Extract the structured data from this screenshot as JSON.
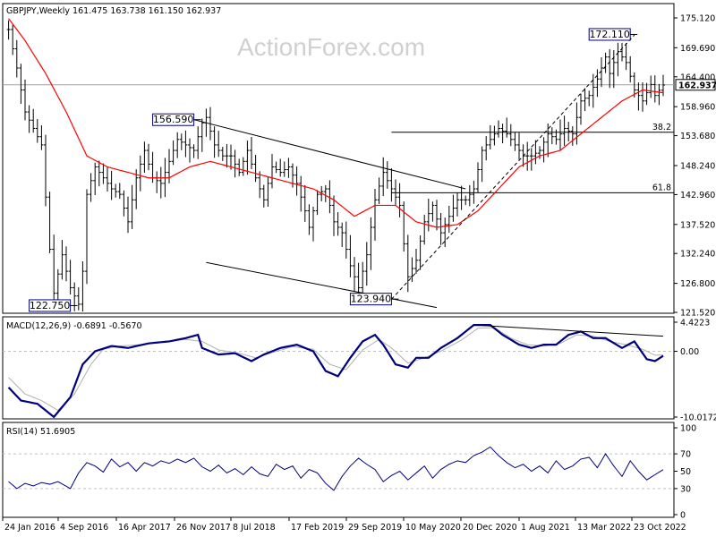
{
  "watermark": "ActionForex.com",
  "chart_data": {
    "type": "line",
    "title": "GBPJPY,Weekly  161.475 163.738 161.150 162.937",
    "price_panel": {
      "ylim": [
        121.52,
        175.12
      ],
      "y_ticks": [
        "175.120",
        "169.690",
        "164.400",
        "158.960",
        "153.680",
        "148.240",
        "142.960",
        "137.520",
        "132.240",
        "126.800",
        "121.520"
      ],
      "current_price": "162.937",
      "price_waypoints": [
        [
          1,
          173
        ],
        [
          3,
          166
        ],
        [
          5,
          158
        ],
        [
          7,
          155
        ],
        [
          9,
          152
        ],
        [
          11,
          133
        ],
        [
          12,
          125
        ],
        [
          14,
          132
        ],
        [
          16,
          126
        ],
        [
          18,
          123
        ],
        [
          19,
          129
        ],
        [
          20,
          143
        ],
        [
          22,
          148
        ],
        [
          24,
          146
        ],
        [
          26,
          144
        ],
        [
          28,
          143
        ],
        [
          30,
          138
        ],
        [
          32,
          146
        ],
        [
          34,
          151
        ],
        [
          36,
          146
        ],
        [
          38,
          145
        ],
        [
          40,
          149
        ],
        [
          42,
          153
        ],
        [
          44,
          152
        ],
        [
          46,
          151
        ],
        [
          48,
          156
        ],
        [
          49,
          157
        ],
        [
          51,
          152
        ],
        [
          53,
          150
        ],
        [
          55,
          150
        ],
        [
          57,
          147
        ],
        [
          59,
          151
        ],
        [
          61,
          146
        ],
        [
          63,
          142
        ],
        [
          65,
          148
        ],
        [
          67,
          147
        ],
        [
          69,
          148
        ],
        [
          71,
          145
        ],
        [
          73,
          140
        ],
        [
          74,
          137
        ],
        [
          76,
          143
        ],
        [
          78,
          144
        ],
        [
          80,
          138
        ],
        [
          82,
          136
        ],
        [
          84,
          130
        ],
        [
          86,
          126
        ],
        [
          88,
          132
        ],
        [
          90,
          142
        ],
        [
          92,
          147
        ],
        [
          94,
          144
        ],
        [
          96,
          141
        ],
        [
          97,
          134
        ],
        [
          98,
          128
        ],
        [
          100,
          131
        ],
        [
          102,
          138
        ],
        [
          104,
          141
        ],
        [
          106,
          136
        ],
        [
          108,
          139
        ],
        [
          110,
          142
        ],
        [
          112,
          142
        ],
        [
          114,
          144
        ],
        [
          116,
          151
        ],
        [
          118,
          153
        ],
        [
          120,
          155
        ],
        [
          122,
          154
        ],
        [
          124,
          152
        ],
        [
          126,
          150
        ],
        [
          128,
          150
        ],
        [
          130,
          151
        ],
        [
          132,
          154
        ],
        [
          134,
          153
        ],
        [
          136,
          155
        ],
        [
          138,
          154
        ],
        [
          140,
          160
        ],
        [
          142,
          161
        ],
        [
          144,
          164
        ],
        [
          146,
          168
        ],
        [
          147,
          165
        ],
        [
          149,
          169
        ],
        [
          151,
          167
        ],
        [
          153,
          162
        ],
        [
          155,
          160
        ],
        [
          157,
          163
        ],
        [
          158,
          161
        ],
        [
          160,
          162.9
        ]
      ],
      "ma_waypoints": [
        [
          1,
          175
        ],
        [
          5,
          171
        ],
        [
          10,
          165
        ],
        [
          15,
          158
        ],
        [
          20,
          150
        ],
        [
          25,
          148
        ],
        [
          30,
          147
        ],
        [
          35,
          146
        ],
        [
          40,
          146
        ],
        [
          45,
          148
        ],
        [
          50,
          149
        ],
        [
          55,
          148
        ],
        [
          60,
          147
        ],
        [
          65,
          146
        ],
        [
          70,
          145
        ],
        [
          75,
          144
        ],
        [
          80,
          142
        ],
        [
          85,
          139
        ],
        [
          90,
          141
        ],
        [
          95,
          141
        ],
        [
          100,
          138
        ],
        [
          105,
          137
        ],
        [
          110,
          137.5
        ],
        [
          115,
          140
        ],
        [
          120,
          144
        ],
        [
          125,
          148
        ],
        [
          130,
          150
        ],
        [
          135,
          151
        ],
        [
          140,
          154
        ],
        [
          145,
          157
        ],
        [
          150,
          160
        ],
        [
          155,
          162
        ],
        [
          160,
          161.5
        ]
      ],
      "annotations": [
        {
          "label": "156.590",
          "x": 46,
          "price": 156.59,
          "anchor": "before"
        },
        {
          "label": "122.750",
          "x": 16,
          "price": 122.75,
          "anchor": "before"
        },
        {
          "label": "123.940",
          "x": 94,
          "price": 123.94,
          "anchor": "before"
        },
        {
          "label": "172.110",
          "x": 152,
          "price": 172.11,
          "anchor": "before"
        }
      ],
      "fib_levels": [
        {
          "label": "38.2",
          "price": 154.3,
          "x_from": 94
        },
        {
          "label": "61.8",
          "price": 143.3,
          "x_from": 94
        }
      ],
      "trendlines": [
        {
          "style": "solid",
          "from": [
            46,
            156.6
          ],
          "to": [
            112,
            144.0
          ]
        },
        {
          "style": "solid",
          "from": [
            49,
            130.6
          ],
          "to": [
            105,
            122.4
          ]
        },
        {
          "style": "dashed",
          "from": [
            94,
            123.9
          ],
          "to": [
            153,
            172.0
          ]
        }
      ]
    },
    "macd_panel": {
      "title": "MACD(12,26,9) -0.6891 -0.5670",
      "ylim": [
        -10.0172,
        4.4223
      ],
      "y_ticks": [
        "4.4223",
        "0.00",
        "-10.0172"
      ],
      "macd_waypoints": [
        [
          1,
          -5.5
        ],
        [
          4,
          -7.5
        ],
        [
          8,
          -8
        ],
        [
          12,
          -10
        ],
        [
          16,
          -7
        ],
        [
          19,
          -2
        ],
        [
          22,
          0
        ],
        [
          26,
          0.8
        ],
        [
          30,
          0.5
        ],
        [
          35,
          1.2
        ],
        [
          40,
          1.5
        ],
        [
          44,
          2
        ],
        [
          47,
          2.5
        ],
        [
          48,
          0.5
        ],
        [
          52,
          -0.5
        ],
        [
          56,
          -0.3
        ],
        [
          60,
          -1.5
        ],
        [
          63,
          -0.5
        ],
        [
          67,
          0.5
        ],
        [
          71,
          1
        ],
        [
          75,
          0
        ],
        [
          78,
          -3
        ],
        [
          81,
          -3.8
        ],
        [
          84,
          -1
        ],
        [
          87,
          1.5
        ],
        [
          90,
          2.5
        ],
        [
          92,
          1
        ],
        [
          95,
          -2
        ],
        [
          98,
          -2.5
        ],
        [
          100,
          -1
        ],
        [
          103,
          -1
        ],
        [
          106,
          0.5
        ],
        [
          110,
          2
        ],
        [
          114,
          4
        ],
        [
          118,
          4
        ],
        [
          121,
          2.5
        ],
        [
          125,
          1
        ],
        [
          128,
          0.5
        ],
        [
          131,
          1
        ],
        [
          134,
          1
        ],
        [
          137,
          2.5
        ],
        [
          140,
          3
        ],
        [
          143,
          2
        ],
        [
          146,
          2
        ],
        [
          150,
          0.5
        ],
        [
          153,
          1.5
        ],
        [
          156,
          -1.2
        ],
        [
          158,
          -1.5
        ],
        [
          160,
          -0.7
        ]
      ],
      "signal_waypoints": [
        [
          1,
          -4
        ],
        [
          5,
          -6.5
        ],
        [
          9,
          -7.5
        ],
        [
          13,
          -9
        ],
        [
          17,
          -6.5
        ],
        [
          21,
          -2
        ],
        [
          24,
          0.3
        ],
        [
          28,
          0.8
        ],
        [
          33,
          1
        ],
        [
          38,
          1.4
        ],
        [
          44,
          1.8
        ],
        [
          48,
          1.5
        ],
        [
          52,
          0.2
        ],
        [
          57,
          -0.3
        ],
        [
          61,
          -1
        ],
        [
          65,
          -0.2
        ],
        [
          70,
          0.7
        ],
        [
          75,
          0.3
        ],
        [
          79,
          -2
        ],
        [
          83,
          -2.8
        ],
        [
          87,
          0.2
        ],
        [
          91,
          1.8
        ],
        [
          94,
          0.5
        ],
        [
          98,
          -1.8
        ],
        [
          102,
          -1
        ],
        [
          106,
          0
        ],
        [
          111,
          1.7
        ],
        [
          115,
          3.5
        ],
        [
          119,
          3.6
        ],
        [
          123,
          2
        ],
        [
          127,
          1
        ],
        [
          131,
          0.8
        ],
        [
          135,
          1.2
        ],
        [
          139,
          2.5
        ],
        [
          143,
          2.3
        ],
        [
          147,
          1.5
        ],
        [
          151,
          1
        ],
        [
          155,
          0.3
        ],
        [
          158,
          -0.6
        ],
        [
          160,
          -0.57
        ]
      ],
      "trendline": {
        "from": [
          114,
          4.0
        ],
        "to": [
          160,
          2.3
        ]
      }
    },
    "rsi_panel": {
      "title": "RSI(14) 51.6905",
      "ylim": [
        0,
        100
      ],
      "y_ticks": [
        "100",
        "70",
        "50",
        "30",
        "0"
      ],
      "levels": [
        70,
        30
      ],
      "rsi_waypoints": [
        [
          1,
          38
        ],
        [
          3,
          30
        ],
        [
          5,
          36
        ],
        [
          7,
          33
        ],
        [
          9,
          37
        ],
        [
          11,
          35
        ],
        [
          13,
          38
        ],
        [
          16,
          30
        ],
        [
          18,
          48
        ],
        [
          20,
          60
        ],
        [
          22,
          56
        ],
        [
          24,
          49
        ],
        [
          26,
          64
        ],
        [
          28,
          55
        ],
        [
          30,
          60
        ],
        [
          32,
          50
        ],
        [
          34,
          60
        ],
        [
          36,
          56
        ],
        [
          38,
          62
        ],
        [
          40,
          59
        ],
        [
          42,
          64
        ],
        [
          44,
          60
        ],
        [
          46,
          65
        ],
        [
          48,
          55
        ],
        [
          50,
          50
        ],
        [
          52,
          57
        ],
        [
          54,
          48
        ],
        [
          56,
          53
        ],
        [
          58,
          46
        ],
        [
          60,
          55
        ],
        [
          62,
          47
        ],
        [
          64,
          44
        ],
        [
          66,
          58
        ],
        [
          68,
          52
        ],
        [
          70,
          56
        ],
        [
          72,
          42
        ],
        [
          74,
          52
        ],
        [
          76,
          48
        ],
        [
          78,
          36
        ],
        [
          80,
          28
        ],
        [
          82,
          44
        ],
        [
          84,
          56
        ],
        [
          86,
          65
        ],
        [
          88,
          58
        ],
        [
          90,
          52
        ],
        [
          92,
          38
        ],
        [
          94,
          45
        ],
        [
          96,
          50
        ],
        [
          98,
          40
        ],
        [
          100,
          48
        ],
        [
          102,
          56
        ],
        [
          104,
          42
        ],
        [
          106,
          52
        ],
        [
          108,
          58
        ],
        [
          110,
          62
        ],
        [
          112,
          60
        ],
        [
          114,
          68
        ],
        [
          116,
          72
        ],
        [
          118,
          78
        ],
        [
          120,
          68
        ],
        [
          122,
          60
        ],
        [
          124,
          54
        ],
        [
          126,
          58
        ],
        [
          128,
          50
        ],
        [
          130,
          56
        ],
        [
          132,
          48
        ],
        [
          134,
          62
        ],
        [
          136,
          52
        ],
        [
          138,
          56
        ],
        [
          140,
          64
        ],
        [
          142,
          66
        ],
        [
          144,
          54
        ],
        [
          146,
          70
        ],
        [
          148,
          56
        ],
        [
          150,
          44
        ],
        [
          152,
          62
        ],
        [
          154,
          50
        ],
        [
          156,
          40
        ],
        [
          158,
          46
        ],
        [
          160,
          51.7
        ]
      ]
    },
    "x_ticks": [
      "24 Jan 2016",
      "4 Sep 2016",
      "16 Apr 2017",
      "26 Nov 2017",
      "8 Jul 2018",
      "17 Feb 2019",
      "29 Sep 2019",
      "10 May 2020",
      "20 Dec 2020",
      "1 Aug 2021",
      "13 Mar 2022",
      "23 Oct 2022"
    ],
    "colors": {
      "price": "#000000",
      "moving_average": "#ff0000",
      "macd": "#000080",
      "macd_signal": "#b0b0b0",
      "grid": "#c0c0c0",
      "current_price_line": "#a0a0a0",
      "label_box": "#000080"
    }
  }
}
